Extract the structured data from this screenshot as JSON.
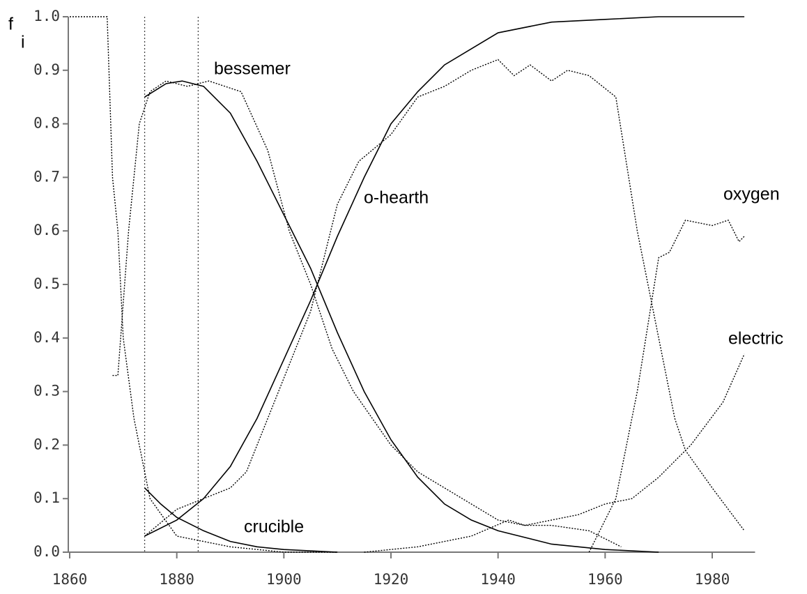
{
  "chart_data": {
    "type": "line",
    "ylabel": "f",
    "ylabel_subscript": "i",
    "xlim": [
      1860,
      1988
    ],
    "ylim": [
      0,
      1
    ],
    "xticks": [
      1860,
      1880,
      1900,
      1920,
      1940,
      1960,
      1980
    ],
    "yticks": [
      {
        "value": 0,
        "label": "0.0"
      },
      0.1,
      0.2,
      0.3,
      0.4,
      0.5,
      0.6,
      0.7,
      0.8,
      0.9,
      {
        "value": 1,
        "label": "1.0"
      }
    ],
    "vlines": [
      1874,
      1884
    ],
    "color": "#000000",
    "series": [
      {
        "dashed": false,
        "x": [
          1874,
          1878,
          1881,
          1885,
          1890,
          1895,
          1900,
          1905,
          1910,
          1915,
          1920,
          1925,
          1930,
          1935,
          1940,
          1950,
          1960,
          1970
        ],
        "values": [
          0.85,
          0.875,
          0.88,
          0.87,
          0.82,
          0.73,
          0.63,
          0.53,
          0.41,
          0.3,
          0.21,
          0.14,
          0.09,
          0.06,
          0.04,
          0.015,
          0.005,
          0.0
        ]
      },
      {
        "dashed": false,
        "x": [
          1874,
          1880,
          1885,
          1890,
          1895,
          1900,
          1905,
          1910,
          1915,
          1920,
          1925,
          1930,
          1935,
          1940,
          1950,
          1960,
          1970,
          1986
        ],
        "values": [
          0.03,
          0.06,
          0.1,
          0.16,
          0.25,
          0.36,
          0.47,
          0.59,
          0.7,
          0.8,
          0.86,
          0.91,
          0.94,
          0.97,
          0.99,
          0.995,
          1.0,
          1.0
        ]
      },
      {
        "dashed": false,
        "x": [
          1874,
          1877,
          1880,
          1885,
          1890,
          1895,
          1900,
          1910
        ],
        "values": [
          0.12,
          0.09,
          0.065,
          0.04,
          0.02,
          0.01,
          0.005,
          0.0
        ]
      },
      {
        "dashed": true,
        "x": [
          1860,
          1867,
          1868,
          1869,
          1870,
          1872,
          1875,
          1880,
          1890,
          1900,
          1910
        ],
        "values": [
          1.0,
          1.0,
          0.7,
          0.6,
          0.4,
          0.25,
          0.1,
          0.03,
          0.01,
          0.0,
          0.0
        ]
      },
      {
        "dashed": true,
        "x": [
          1868,
          1869,
          1871,
          1873,
          1875,
          1878,
          1882,
          1886,
          1892,
          1897,
          1901,
          1905,
          1909,
          1913,
          1920,
          1925,
          1930,
          1935,
          1940,
          1945,
          1950,
          1957,
          1963
        ],
        "values": [
          0.33,
          0.33,
          0.6,
          0.8,
          0.86,
          0.88,
          0.87,
          0.88,
          0.86,
          0.75,
          0.6,
          0.5,
          0.38,
          0.3,
          0.2,
          0.15,
          0.12,
          0.09,
          0.06,
          0.05,
          0.05,
          0.04,
          0.01
        ]
      },
      {
        "dashed": true,
        "x": [
          1874,
          1880,
          1885,
          1890,
          1893,
          1897,
          1901,
          1905,
          1910,
          1914,
          1920,
          1925,
          1930,
          1935,
          1940,
          1943,
          1946,
          1950,
          1953,
          1957,
          1962,
          1966,
          1970,
          1973,
          1975,
          1980,
          1983,
          1986
        ],
        "values": [
          0.03,
          0.08,
          0.1,
          0.12,
          0.15,
          0.25,
          0.35,
          0.45,
          0.65,
          0.73,
          0.78,
          0.85,
          0.87,
          0.9,
          0.92,
          0.89,
          0.91,
          0.88,
          0.9,
          0.89,
          0.85,
          0.6,
          0.4,
          0.25,
          0.19,
          0.12,
          0.08,
          0.04
        ]
      },
      {
        "dashed": true,
        "x": [
          1957,
          1962,
          1966,
          1970,
          1972,
          1975,
          1980,
          1983,
          1985,
          1986
        ],
        "values": [
          0.0,
          0.1,
          0.3,
          0.55,
          0.56,
          0.62,
          0.61,
          0.62,
          0.58,
          0.59
        ]
      },
      {
        "dashed": true,
        "x": [
          1915,
          1925,
          1935,
          1942,
          1945,
          1950,
          1955,
          1960,
          1965,
          1970,
          1974,
          1976,
          1982,
          1986
        ],
        "values": [
          0.0,
          0.01,
          0.03,
          0.06,
          0.05,
          0.06,
          0.07,
          0.09,
          0.1,
          0.14,
          0.18,
          0.2,
          0.28,
          0.37
        ]
      }
    ],
    "annotations": [
      "bessemer",
      "o-hearth",
      "oxygen",
      "electric",
      "crucible"
    ]
  }
}
